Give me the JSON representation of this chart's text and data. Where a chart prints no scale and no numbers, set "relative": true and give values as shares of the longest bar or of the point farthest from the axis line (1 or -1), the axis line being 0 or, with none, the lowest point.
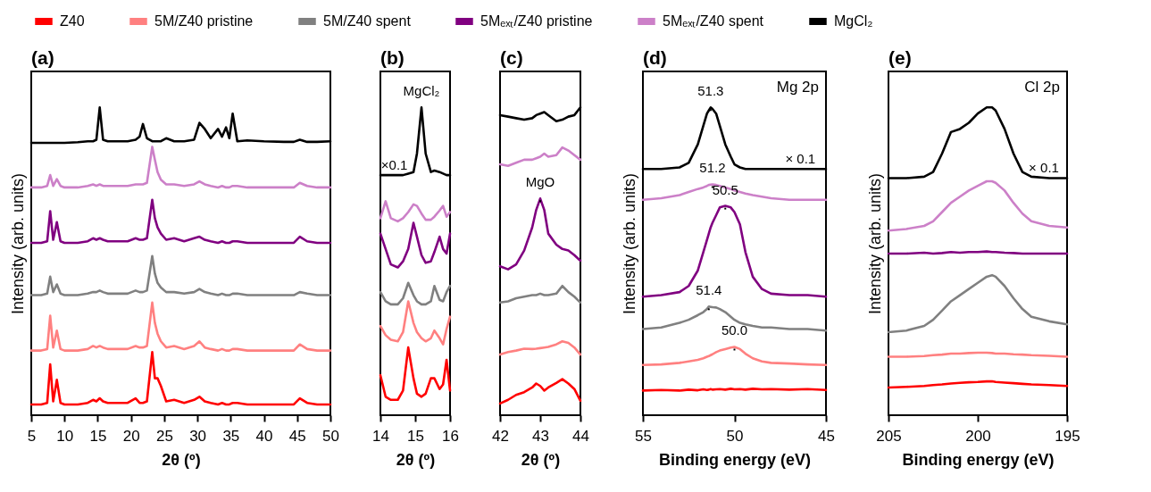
{
  "chart_data": [
    {
      "type": "line",
      "title": "(a)",
      "xlabel": "2θ (º)",
      "ylabel": "Intensity (arb. units)",
      "relative": true,
      "legend": "top",
      "xlim": [
        5,
        50
      ],
      "xticks": [
        5,
        10,
        15,
        20,
        25,
        30,
        35,
        40,
        45,
        50
      ],
      "x": [
        5,
        6.5,
        7.4,
        7.85,
        8.3,
        8.85,
        9.4,
        10,
        12,
        13.5,
        14.3,
        14.8,
        15.3,
        15.8,
        16.5,
        18,
        19.5,
        20.7,
        21.3,
        21.8,
        22.4,
        23.2,
        23.6,
        24.0,
        24.5,
        25.3,
        26.5,
        28,
        29.5,
        30.3,
        31.1,
        32,
        33.1,
        33.7,
        34.3,
        34.8,
        35.3,
        36,
        37.5,
        40,
        43,
        44.5,
        45.4,
        46.5,
        48,
        50
      ],
      "series": [
        {
          "name": "Z40",
          "color": "#ff0000",
          "values": [
            0.035,
            0.035,
            0.04,
            0.165,
            0.045,
            0.115,
            0.04,
            0.035,
            0.035,
            0.04,
            0.05,
            0.045,
            0.055,
            0.045,
            0.04,
            0.04,
            0.04,
            0.055,
            0.04,
            0.04,
            0.045,
            0.205,
            0.12,
            0.12,
            0.095,
            0.045,
            0.05,
            0.04,
            0.05,
            0.06,
            0.045,
            0.04,
            0.035,
            0.04,
            0.035,
            0.035,
            0.04,
            0.04,
            0.035,
            0.035,
            0.035,
            0.035,
            0.055,
            0.04,
            0.035,
            0.035
          ]
        },
        {
          "name": "5M/Z40 pristine",
          "color": "#ff8080",
          "values": [
            0.21,
            0.21,
            0.215,
            0.323,
            0.22,
            0.275,
            0.215,
            0.21,
            0.21,
            0.215,
            0.225,
            0.22,
            0.225,
            0.22,
            0.215,
            0.215,
            0.215,
            0.225,
            0.22,
            0.22,
            0.225,
            0.366,
            0.3,
            0.265,
            0.24,
            0.22,
            0.225,
            0.215,
            0.225,
            0.24,
            0.22,
            0.215,
            0.21,
            0.215,
            0.21,
            0.21,
            0.215,
            0.215,
            0.21,
            0.21,
            0.21,
            0.21,
            0.23,
            0.215,
            0.21,
            0.21
          ]
        },
        {
          "name": "5M/Z40 spent",
          "color": "#808080",
          "values": [
            0.39,
            0.39,
            0.395,
            0.45,
            0.4,
            0.425,
            0.395,
            0.39,
            0.39,
            0.395,
            0.4,
            0.4,
            0.405,
            0.4,
            0.395,
            0.395,
            0.395,
            0.405,
            0.4,
            0.4,
            0.405,
            0.517,
            0.46,
            0.43,
            0.415,
            0.4,
            0.4,
            0.395,
            0.4,
            0.41,
            0.4,
            0.395,
            0.39,
            0.395,
            0.39,
            0.39,
            0.395,
            0.395,
            0.39,
            0.39,
            0.39,
            0.39,
            0.4,
            0.395,
            0.39,
            0.39
          ]
        },
        {
          "name": "5Mₑₓₜ/Z40 pristine",
          "color": "#800080",
          "values": [
            0.56,
            0.56,
            0.565,
            0.663,
            0.57,
            0.627,
            0.565,
            0.56,
            0.56,
            0.565,
            0.575,
            0.57,
            0.575,
            0.57,
            0.565,
            0.565,
            0.565,
            0.575,
            0.57,
            0.57,
            0.575,
            0.7,
            0.64,
            0.61,
            0.59,
            0.57,
            0.575,
            0.565,
            0.575,
            0.58,
            0.57,
            0.565,
            0.56,
            0.565,
            0.56,
            0.56,
            0.565,
            0.565,
            0.56,
            0.56,
            0.56,
            0.56,
            0.58,
            0.565,
            0.56,
            0.56
          ]
        },
        {
          "name": "5Mₑₓₜ/Z40 spent",
          "color": "#cc80c8",
          "values": [
            0.74,
            0.74,
            0.745,
            0.78,
            0.745,
            0.767,
            0.745,
            0.74,
            0.74,
            0.745,
            0.75,
            0.745,
            0.75,
            0.745,
            0.745,
            0.745,
            0.745,
            0.75,
            0.75,
            0.75,
            0.755,
            0.872,
            0.83,
            0.79,
            0.765,
            0.75,
            0.75,
            0.745,
            0.75,
            0.76,
            0.75,
            0.745,
            0.74,
            0.745,
            0.74,
            0.74,
            0.745,
            0.745,
            0.74,
            0.74,
            0.74,
            0.74,
            0.755,
            0.745,
            0.74,
            0.74
          ]
        },
        {
          "name": "MgCl₂",
          "color": "#000000",
          "values": [
            0.885,
            0.885,
            0.885,
            0.885,
            0.885,
            0.885,
            0.885,
            0.885,
            0.887,
            0.89,
            0.89,
            0.895,
            1.0,
            0.895,
            0.89,
            0.89,
            0.89,
            0.895,
            0.905,
            0.946,
            0.9,
            0.89,
            0.89,
            0.89,
            0.89,
            0.9,
            0.89,
            0.89,
            0.895,
            0.95,
            0.93,
            0.9,
            0.93,
            0.905,
            0.935,
            0.9,
            0.98,
            0.89,
            0.893,
            0.89,
            0.888,
            0.888,
            0.895,
            0.888,
            0.888,
            0.89
          ]
        }
      ]
    },
    {
      "type": "line",
      "title": "(b)",
      "xlabel": "2θ (º)",
      "relative": true,
      "xlim": [
        14,
        16
      ],
      "xticks": [
        14,
        15,
        16
      ],
      "x": [
        14,
        14.15,
        14.3,
        14.5,
        14.65,
        14.8,
        14.95,
        15.05,
        15.18,
        15.3,
        15.45,
        15.55,
        15.7,
        15.8,
        15.9,
        16
      ],
      "series": [
        {
          "color": "#ff0000",
          "values": [
            0.13,
            0.06,
            0.05,
            0.05,
            0.08,
            0.22,
            0.12,
            0.07,
            0.06,
            0.07,
            0.12,
            0.12,
            0.085,
            0.1,
            0.18,
            0.08
          ]
        },
        {
          "color": "#ff8080",
          "values": [
            0.29,
            0.26,
            0.245,
            0.24,
            0.27,
            0.37,
            0.3,
            0.27,
            0.25,
            0.24,
            0.25,
            0.275,
            0.25,
            0.23,
            0.28,
            0.32
          ]
        },
        {
          "color": "#808080",
          "values": [
            0.4,
            0.37,
            0.36,
            0.36,
            0.38,
            0.43,
            0.39,
            0.37,
            0.36,
            0.36,
            0.37,
            0.42,
            0.375,
            0.37,
            0.4,
            0.42
          ]
        },
        {
          "color": "#800080",
          "values": [
            0.59,
            0.54,
            0.49,
            0.48,
            0.5,
            0.54,
            0.625,
            0.58,
            0.52,
            0.495,
            0.5,
            0.53,
            0.58,
            0.54,
            0.525,
            0.59
          ]
        },
        {
          "color": "#cc80c8",
          "values": [
            0.64,
            0.695,
            0.64,
            0.63,
            0.64,
            0.66,
            0.685,
            0.68,
            0.655,
            0.635,
            0.635,
            0.645,
            0.665,
            0.68,
            0.645,
            0.66
          ]
        },
        {
          "color": "#000000",
          "values": [
            0.78,
            0.78,
            0.78,
            0.78,
            0.78,
            0.785,
            0.79,
            0.85,
            1.0,
            0.85,
            0.79,
            0.795,
            0.79,
            0.785,
            0.78,
            0.78
          ]
        }
      ],
      "annotations": [
        {
          "text": "MgCl₂",
          "x": 15.18,
          "y": 1.0
        },
        {
          "text": "×0.1",
          "x": 14.4,
          "y": 0.79
        }
      ]
    },
    {
      "type": "line",
      "title": "(c)",
      "xlabel": "2θ (º)",
      "relative": true,
      "xlim": [
        42,
        44
      ],
      "xticks": [
        42,
        43,
        44
      ],
      "x": [
        42,
        42.2,
        42.4,
        42.6,
        42.8,
        42.9,
        43,
        43.1,
        43.2,
        43.4,
        43.55,
        43.7,
        43.85,
        44
      ],
      "series": [
        {
          "color": "#ff0000",
          "values": [
            0.038,
            0.05,
            0.066,
            0.075,
            0.09,
            0.103,
            0.095,
            0.08,
            0.09,
            0.105,
            0.117,
            0.103,
            0.085,
            0.047
          ]
        },
        {
          "color": "#ff8080",
          "values": [
            0.197,
            0.205,
            0.21,
            0.216,
            0.215,
            0.216,
            0.218,
            0.22,
            0.222,
            0.23,
            0.24,
            0.235,
            0.22,
            0.197
          ]
        },
        {
          "color": "#808080",
          "values": [
            0.366,
            0.37,
            0.38,
            0.385,
            0.39,
            0.39,
            0.395,
            0.39,
            0.39,
            0.395,
            0.42,
            0.4,
            0.385,
            0.366
          ]
        },
        {
          "color": "#800080",
          "values": [
            0.484,
            0.474,
            0.49,
            0.535,
            0.61,
            0.667,
            0.704,
            0.667,
            0.59,
            0.554,
            0.54,
            0.535,
            0.52,
            0.502
          ]
        },
        {
          "color": "#cc80c8",
          "values": [
            0.815,
            0.81,
            0.82,
            0.83,
            0.83,
            0.835,
            0.84,
            0.85,
            0.84,
            0.845,
            0.87,
            0.86,
            0.845,
            0.83
          ]
        },
        {
          "color": "#000000",
          "values": [
            0.975,
            0.97,
            0.965,
            0.96,
            0.965,
            0.975,
            0.98,
            0.985,
            0.975,
            0.955,
            0.96,
            0.97,
            0.975,
            1.0
          ]
        }
      ],
      "annotations": [
        {
          "text": "MgO",
          "x": 43,
          "y": 0.704
        }
      ]
    },
    {
      "type": "line",
      "title": "(d)",
      "xlabel": "Binding energy (eV)",
      "ylabel": "Intensity (arb. units)",
      "relative": true,
      "xlim": [
        55,
        45
      ],
      "xticks": [
        55,
        50,
        45
      ],
      "x": [
        55,
        54,
        53,
        52.5,
        52,
        51.7,
        51.5,
        51.4,
        51.3,
        51.2,
        51,
        50.8,
        50.5,
        50.2,
        50,
        49.7,
        49.4,
        49,
        48.5,
        48,
        47,
        46,
        45
      ],
      "series": [
        {
          "color": "#ff0000",
          "values": [
            0.08,
            0.082,
            0.08,
            0.083,
            0.081,
            0.084,
            0.082,
            0.083,
            0.085,
            0.083,
            0.084,
            0.085,
            0.083,
            0.086,
            0.084,
            0.085,
            0.083,
            0.086,
            0.084,
            0.085,
            0.083,
            0.085,
            0.082
          ]
        },
        {
          "color": "#ff8080",
          "values": [
            0.163,
            0.165,
            0.17,
            0.175,
            0.18,
            0.185,
            0.19,
            0.192,
            0.195,
            0.198,
            0.205,
            0.21,
            0.215,
            0.22,
            0.222,
            0.215,
            0.2,
            0.185,
            0.175,
            0.17,
            0.168,
            0.165,
            0.163
          ]
        },
        {
          "color": "#808080",
          "values": [
            0.28,
            0.285,
            0.3,
            0.31,
            0.325,
            0.335,
            0.345,
            0.353,
            0.352,
            0.351,
            0.35,
            0.345,
            0.335,
            0.32,
            0.31,
            0.3,
            0.295,
            0.29,
            0.285,
            0.285,
            0.28,
            0.28,
            0.275
          ]
        },
        {
          "color": "#800080",
          "values": [
            0.385,
            0.39,
            0.4,
            0.42,
            0.47,
            0.53,
            0.57,
            0.59,
            0.61,
            0.625,
            0.65,
            0.675,
            0.68,
            0.675,
            0.66,
            0.62,
            0.53,
            0.45,
            0.41,
            0.395,
            0.39,
            0.39,
            0.385
          ]
        },
        {
          "color": "#cc80c8",
          "values": [
            0.7,
            0.705,
            0.715,
            0.725,
            0.735,
            0.74,
            0.745,
            0.748,
            0.749,
            0.75,
            0.748,
            0.745,
            0.74,
            0.735,
            0.73,
            0.725,
            0.72,
            0.715,
            0.71,
            0.705,
            0.7,
            0.7,
            0.7
          ]
        },
        {
          "color": "#000000",
          "values": [
            0.8,
            0.8,
            0.805,
            0.82,
            0.88,
            0.94,
            0.98,
            0.99,
            1.0,
            0.995,
            0.98,
            0.94,
            0.88,
            0.84,
            0.815,
            0.805,
            0.8,
            0.8,
            0.8,
            0.8,
            0.8,
            0.8,
            0.8
          ]
        }
      ],
      "annotations": [
        {
          "text": "51.3",
          "x": 51.3,
          "y": 1.0
        },
        {
          "text": "51.2",
          "x": 51.2,
          "y": 0.75
        },
        {
          "text": "50.5",
          "x": 50.5,
          "y": 0.68
        },
        {
          "text": "51.4",
          "x": 51.4,
          "y": 0.353
        },
        {
          "text": "50.0",
          "x": 50,
          "y": 0.222
        },
        "Mg 2p",
        {
          "text": "× 0.1",
          "x": 46.4,
          "y": 0.81
        }
      ]
    },
    {
      "type": "line",
      "title": "(e)",
      "xlabel": "Binding energy (eV)",
      "ylabel": "Intensity (arb. units)",
      "relative": true,
      "xlim": [
        205,
        195
      ],
      "xticks": [
        205,
        200,
        195
      ],
      "x": [
        205,
        204,
        203,
        202.5,
        202,
        201.5,
        201,
        200.5,
        200,
        199.5,
        199.2,
        199,
        198.5,
        198,
        197.5,
        197,
        196,
        195
      ],
      "series": [
        {
          "color": "#ff0000",
          "values": [
            0.09,
            0.092,
            0.095,
            0.098,
            0.1,
            0.103,
            0.105,
            0.107,
            0.108,
            0.11,
            0.11,
            0.108,
            0.106,
            0.104,
            0.102,
            0.1,
            0.098,
            0.095
          ]
        },
        {
          "color": "#ff8080",
          "values": [
            0.19,
            0.19,
            0.192,
            0.195,
            0.197,
            0.2,
            0.2,
            0.202,
            0.203,
            0.203,
            0.202,
            0.2,
            0.2,
            0.198,
            0.197,
            0.195,
            0.193,
            0.19
          ]
        },
        {
          "color": "#808080",
          "values": [
            0.27,
            0.275,
            0.29,
            0.31,
            0.34,
            0.37,
            0.39,
            0.41,
            0.43,
            0.45,
            0.455,
            0.45,
            0.42,
            0.38,
            0.345,
            0.32,
            0.305,
            0.295
          ]
        },
        {
          "color": "#800080",
          "values": [
            0.525,
            0.525,
            0.528,
            0.525,
            0.527,
            0.53,
            0.528,
            0.53,
            0.53,
            0.532,
            0.53,
            0.53,
            0.528,
            0.527,
            0.525,
            0.525,
            0.525,
            0.525
          ]
        },
        {
          "color": "#cc80c8",
          "values": [
            0.6,
            0.605,
            0.615,
            0.63,
            0.66,
            0.69,
            0.71,
            0.73,
            0.745,
            0.76,
            0.76,
            0.755,
            0.73,
            0.69,
            0.655,
            0.63,
            0.615,
            0.61
          ]
        },
        {
          "color": "#000000",
          "values": [
            0.77,
            0.77,
            0.775,
            0.79,
            0.85,
            0.92,
            0.93,
            0.95,
            0.98,
            1.0,
            1.0,
            0.99,
            0.93,
            0.85,
            0.79,
            0.775,
            0.77,
            0.77
          ]
        }
      ],
      "annotations": [
        "Cl 2p",
        {
          "text": "× 0.1",
          "x": 196.3,
          "y": 0.78
        }
      ]
    }
  ]
}
